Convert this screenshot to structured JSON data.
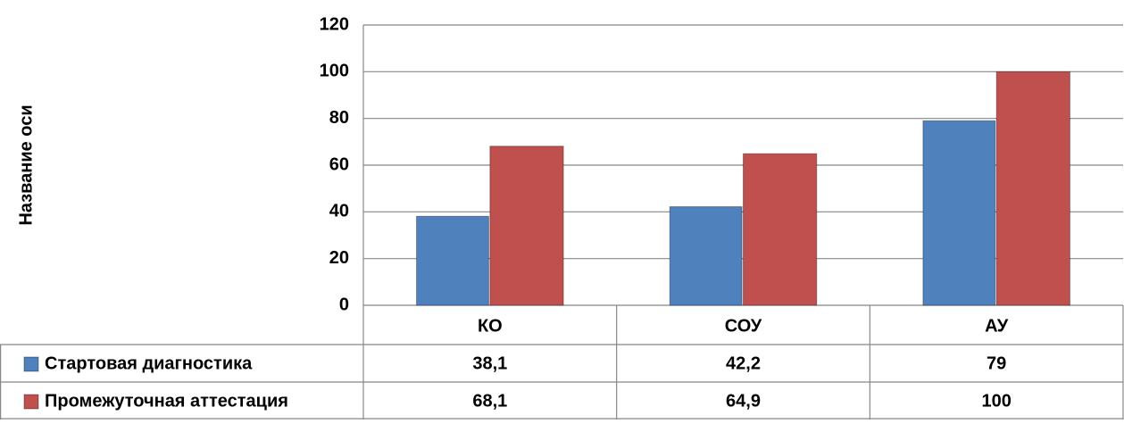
{
  "chart_data": {
    "type": "bar",
    "y_axis_title": "Название оси",
    "categories": [
      "КО",
      "СОУ",
      "АУ"
    ],
    "series": [
      {
        "name": "Стартовая диагностика",
        "color": "#4f81bd",
        "values": [
          38.1,
          42.2,
          79
        ],
        "value_labels": [
          "38,1",
          "42,2",
          "79"
        ]
      },
      {
        "name": "Промежуточная аттестация",
        "color": "#c0504d",
        "values": [
          68.1,
          64.9,
          100
        ],
        "value_labels": [
          "68,1",
          "64,9",
          "100"
        ]
      }
    ],
    "ylim": [
      0,
      120
    ],
    "yticks": [
      0,
      20,
      40,
      60,
      80,
      100,
      120
    ],
    "grid": true,
    "data_table": true
  }
}
